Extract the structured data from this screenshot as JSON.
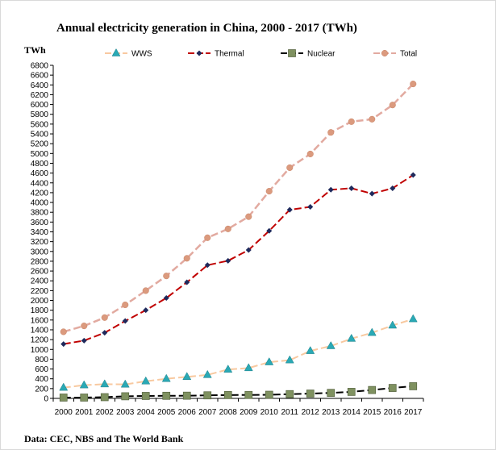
{
  "chart_data": {
    "type": "line",
    "title": "Annual electricity generation in China, 2000 - 2017 (TWh)",
    "ylabel": "TWh",
    "xlabel": "",
    "source": "Data: CEC, NBS and The World Bank",
    "ylim": [
      0,
      6800
    ],
    "ystep": 200,
    "grid": false,
    "legend_position": "top",
    "categories": [
      "2000",
      "2001",
      "2002",
      "2003",
      "2004",
      "2005",
      "2006",
      "2007",
      "2008",
      "2009",
      "2010",
      "2011",
      "2012",
      "2013",
      "2014",
      "2015",
      "2016",
      "2017"
    ],
    "series": [
      {
        "name": "WWS",
        "color": "#f8c9a0",
        "marker": "triangle",
        "marker_color": "#2aa9b5",
        "dash": "dashed",
        "values": [
          220,
          270,
          290,
          285,
          350,
          400,
          440,
          480,
          590,
          620,
          740,
          780,
          970,
          1070,
          1220,
          1340,
          1490,
          1620
        ]
      },
      {
        "name": "Thermal",
        "color": "#c00000",
        "marker": "diamond",
        "marker_color": "#1f2a5c",
        "dash": "dashed",
        "values": [
          1110,
          1180,
          1340,
          1580,
          1800,
          2050,
          2370,
          2720,
          2810,
          3030,
          3420,
          3850,
          3910,
          4260,
          4290,
          4180,
          4290,
          4560
        ]
      },
      {
        "name": "Nuclear",
        "color": "#000000",
        "marker": "square",
        "marker_color": "#7f9160",
        "dash": "dashed",
        "values": [
          17,
          17,
          25,
          43,
          50,
          53,
          55,
          62,
          68,
          70,
          74,
          87,
          98,
          112,
          133,
          171,
          213,
          248
        ]
      },
      {
        "name": "Total",
        "color": "#e2aaa0",
        "marker": "circle",
        "marker_color": "#db9a7e",
        "dash": "dashed",
        "values": [
          1360,
          1480,
          1650,
          1910,
          2200,
          2500,
          2860,
          3280,
          3460,
          3710,
          4230,
          4710,
          4990,
          5430,
          5650,
          5700,
          5990,
          6420
        ]
      }
    ]
  }
}
